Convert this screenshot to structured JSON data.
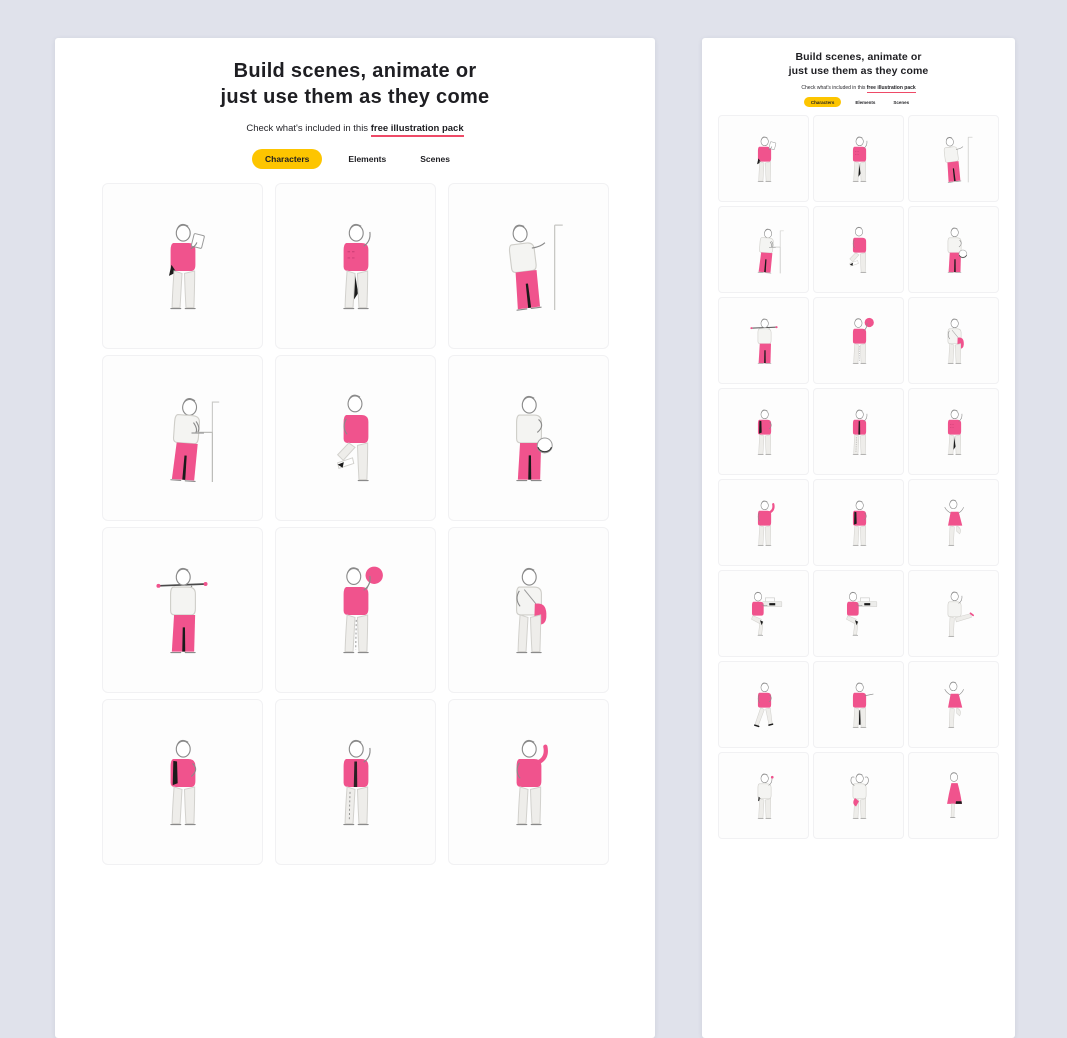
{
  "page": {
    "background": "#e0e2eb",
    "accent_pink": "#f0538d",
    "accent_yellow": "#fdc500",
    "underline_red": "#ee4a67",
    "heading_color": "#1e1e22"
  },
  "left_panel": {
    "heading_line1": "Build scenes, animate or",
    "heading_line2": "just use them as they come",
    "subtitle_prefix": "Check what's included in this ",
    "subtitle_link": "free illustration pack",
    "tabs": [
      {
        "label": "Characters",
        "active": true
      },
      {
        "label": "Elements",
        "active": false
      },
      {
        "label": "Scenes",
        "active": false
      }
    ],
    "cells": [
      {
        "variant": "reading"
      },
      {
        "variant": "hands-behind"
      },
      {
        "variant": "leaning-wall"
      },
      {
        "variant": "standing-desk"
      },
      {
        "variant": "stepping-up"
      },
      {
        "variant": "helmet-carry"
      },
      {
        "variant": "carrying-tray"
      },
      {
        "variant": "balloon"
      },
      {
        "variant": "shoulder-bag"
      },
      {
        "variant": "hands-in-pockets"
      },
      {
        "variant": "thinking"
      },
      {
        "variant": "waving-arm"
      }
    ]
  },
  "right_panel": {
    "heading_line1": "Build scenes, animate or",
    "heading_line2": "just use them as they come",
    "subtitle_prefix": "Check what's included in this ",
    "subtitle_link": "free illustration pack",
    "tabs": [
      {
        "label": "Characters",
        "active": true
      },
      {
        "label": "Elements",
        "active": false
      },
      {
        "label": "Scenes",
        "active": false
      }
    ],
    "cells": [
      {
        "variant": "reading"
      },
      {
        "variant": "hands-behind"
      },
      {
        "variant": "leaning-wall"
      },
      {
        "variant": "standing-desk"
      },
      {
        "variant": "stepping-up"
      },
      {
        "variant": "helmet-carry"
      },
      {
        "variant": "carrying-tray"
      },
      {
        "variant": "balloon"
      },
      {
        "variant": "shoulder-bag"
      },
      {
        "variant": "hands-in-pockets"
      },
      {
        "variant": "thinking"
      },
      {
        "variant": "hands-behind"
      },
      {
        "variant": "waving-arm"
      },
      {
        "variant": "hands-in-pockets"
      },
      {
        "variant": "dancing"
      },
      {
        "variant": "sitting-desk"
      },
      {
        "variant": "sitting-desk"
      },
      {
        "variant": "leg-raised"
      },
      {
        "variant": "walking"
      },
      {
        "variant": "pointing"
      },
      {
        "variant": "dancing"
      },
      {
        "variant": "waving"
      },
      {
        "variant": "flexing"
      },
      {
        "variant": "pink-dress"
      }
    ]
  }
}
